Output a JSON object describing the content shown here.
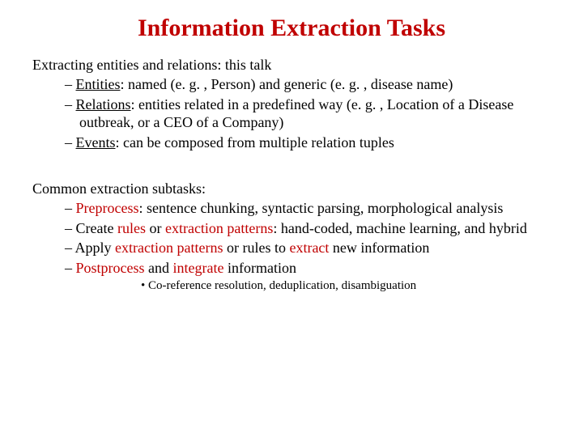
{
  "colors": {
    "title": "#c00000",
    "highlight": "#c00000",
    "body": "#000000",
    "background": "#ffffff"
  },
  "title": "Information Extraction Tasks",
  "section1": {
    "lead": "Extracting entities and relations: this talk",
    "items": [
      {
        "label": "Entities",
        "rest": ": named (e. g. , Person) and generic (e. g. , disease name)"
      },
      {
        "label": "Relations",
        "rest": ": entities related in a predefined way (e. g. , Location of a Disease outbreak, or a CEO of a Company)"
      },
      {
        "label": "Events",
        "rest": ": can be composed from multiple relation tuples"
      }
    ]
  },
  "section2": {
    "lead": "Common extraction subtasks:",
    "items": {
      "a": {
        "label": "Preprocess",
        "rest": ": sentence chunking, syntactic parsing, morphological analysis"
      },
      "b": {
        "pre": "Create ",
        "hl1": "rules",
        "mid": " or ",
        "hl2": "extraction patterns",
        "rest": ": hand-coded, machine learning, and hybrid"
      },
      "c": {
        "pre": "Apply ",
        "hl1": "extraction patterns",
        "mid": " or rules to ",
        "hl2": "extract",
        "rest": " new information"
      },
      "d": {
        "hl1": "Postprocess",
        "mid": " and ",
        "hl2": "integrate",
        "rest": " information"
      }
    },
    "sub": "Co-reference resolution, deduplication, disambiguation"
  }
}
